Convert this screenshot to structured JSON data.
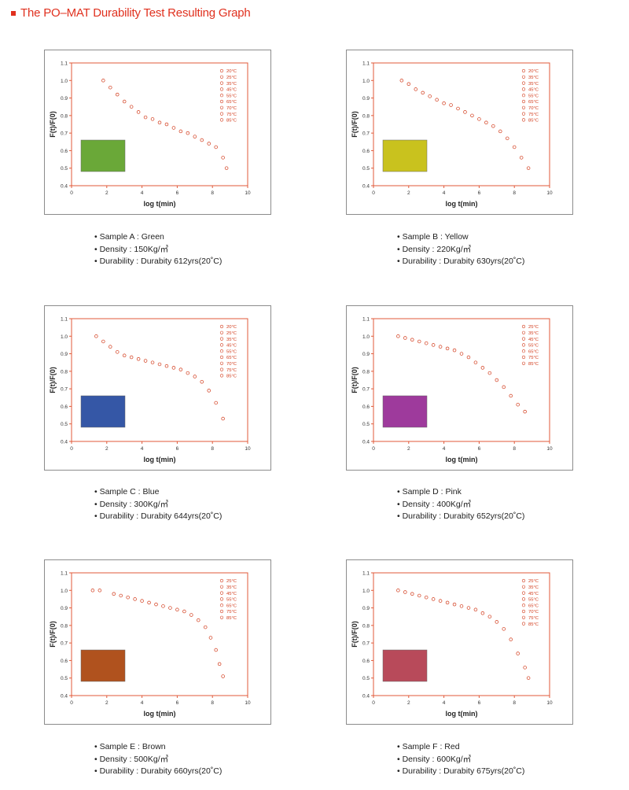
{
  "header": {
    "title": "The PO–MAT Durability Test Resulting Graph"
  },
  "colors": {
    "accent": "#e0301e",
    "marker": "#d23a1a",
    "axis": "#e05a3a",
    "tick_text": "#333333"
  },
  "chart_data": [
    {
      "type": "scatter",
      "sample_label": "Sample A : Green",
      "density_label": "Density : 150Kg/㎥",
      "durability_label": "Durability : Durabity 612yrs(20˚C)",
      "xlabel": "log t(min)",
      "ylabel": "F(t)/F(0)",
      "xlim": [
        0,
        10
      ],
      "ylim": [
        0.4,
        1.1
      ],
      "x_ticks": [
        "0",
        "2",
        "4",
        "6",
        "8",
        "10"
      ],
      "y_ticks": [
        "0.4",
        "0.5",
        "0.6",
        "0.7",
        "0.8",
        "0.9",
        "1.0",
        "1.1"
      ],
      "legend": [
        "20°C",
        "25°C",
        "35°C",
        "45°C",
        "55°C",
        "65°C",
        "70°C",
        "75°C",
        "85°C"
      ],
      "swatch_color": "#6aa838",
      "x": [
        1.8,
        2.2,
        2.6,
        3.0,
        3.4,
        3.8,
        4.2,
        4.6,
        5.0,
        5.4,
        5.8,
        6.2,
        6.6,
        7.0,
        7.4,
        7.8,
        8.2,
        8.6,
        8.8
      ],
      "y": [
        1.0,
        0.96,
        0.92,
        0.88,
        0.85,
        0.82,
        0.79,
        0.78,
        0.76,
        0.75,
        0.73,
        0.71,
        0.7,
        0.68,
        0.66,
        0.64,
        0.62,
        0.56,
        0.5
      ]
    },
    {
      "type": "scatter",
      "sample_label": "Sample B : Yellow",
      "density_label": "Density : 220Kg/㎥",
      "durability_label": "Durability : Durabity 630yrs(20˚C)",
      "xlabel": "log t(min)",
      "ylabel": "F(t)/F(0)",
      "xlim": [
        0,
        10
      ],
      "ylim": [
        0.4,
        1.1
      ],
      "x_ticks": [
        "0",
        "2",
        "4",
        "6",
        "8",
        "10"
      ],
      "y_ticks": [
        "0.4",
        "0.5",
        "0.6",
        "0.7",
        "0.8",
        "0.9",
        "1.0",
        "1.1"
      ],
      "legend": [
        "20°C",
        "35°C",
        "35°C",
        "45°C",
        "55°C",
        "65°C",
        "70°C",
        "75°C",
        "85°C"
      ],
      "swatch_color": "#c9c21e",
      "x": [
        1.6,
        2.0,
        2.4,
        2.8,
        3.2,
        3.6,
        4.0,
        4.4,
        4.8,
        5.2,
        5.6,
        6.0,
        6.4,
        6.8,
        7.2,
        7.6,
        8.0,
        8.4,
        8.8
      ],
      "y": [
        1.0,
        0.98,
        0.95,
        0.93,
        0.91,
        0.89,
        0.87,
        0.86,
        0.84,
        0.82,
        0.8,
        0.78,
        0.76,
        0.74,
        0.71,
        0.67,
        0.62,
        0.56,
        0.5
      ]
    },
    {
      "type": "scatter",
      "sample_label": "Sample C : Blue",
      "density_label": "Density : 300Kg/㎥",
      "durability_label": "Durability : Durabity 644yrs(20˚C)",
      "xlabel": "log t(min)",
      "ylabel": "F(t)/F(0)",
      "xlim": [
        0,
        10
      ],
      "ylim": [
        0.4,
        1.1
      ],
      "x_ticks": [
        "0",
        "2",
        "4",
        "6",
        "8",
        "10"
      ],
      "y_ticks": [
        "0.4",
        "0.5",
        "0.6",
        "0.7",
        "0.8",
        "0.9",
        "1.0",
        "1.1"
      ],
      "legend": [
        "20°C",
        "25°C",
        "35°C",
        "45°C",
        "55°C",
        "65°C",
        "70°C",
        "75°C",
        "85°C"
      ],
      "swatch_color": "#3557a6",
      "x": [
        1.4,
        1.8,
        2.2,
        2.6,
        3.0,
        3.4,
        3.8,
        4.2,
        4.6,
        5.0,
        5.4,
        5.8,
        6.2,
        6.6,
        7.0,
        7.4,
        7.8,
        8.2,
        8.6
      ],
      "y": [
        1.0,
        0.97,
        0.94,
        0.91,
        0.89,
        0.88,
        0.87,
        0.86,
        0.85,
        0.84,
        0.83,
        0.82,
        0.81,
        0.79,
        0.77,
        0.74,
        0.69,
        0.62,
        0.53
      ]
    },
    {
      "type": "scatter",
      "sample_label": "Sample D : Pink",
      "density_label": "Density : 400Kg/㎥",
      "durability_label": "Durability : Durabity 652yrs(20˚C)",
      "xlabel": "log t(min)",
      "ylabel": "F(t)/F(0)",
      "xlim": [
        0,
        10
      ],
      "ylim": [
        0.4,
        1.1
      ],
      "x_ticks": [
        "0",
        "2",
        "4",
        "6",
        "8",
        "10"
      ],
      "y_ticks": [
        "0.4",
        "0.5",
        "0.6",
        "0.7",
        "0.8",
        "0.9",
        "1.0",
        "1.1"
      ],
      "legend": [
        "25°C",
        "35°C",
        "45°C",
        "55°C",
        "65°C",
        "75°C",
        "85°C"
      ],
      "swatch_color": "#9e3a9c",
      "x": [
        1.4,
        1.8,
        2.2,
        2.6,
        3.0,
        3.4,
        3.8,
        4.2,
        4.6,
        5.0,
        5.4,
        5.8,
        6.2,
        6.6,
        7.0,
        7.4,
        7.8,
        8.2,
        8.6
      ],
      "y": [
        1.0,
        0.99,
        0.98,
        0.97,
        0.96,
        0.95,
        0.94,
        0.93,
        0.92,
        0.9,
        0.88,
        0.85,
        0.82,
        0.79,
        0.75,
        0.71,
        0.66,
        0.61,
        0.57
      ]
    },
    {
      "type": "scatter",
      "sample_label": "Sample E : Brown",
      "density_label": "Density : 500Kg/㎥",
      "durability_label": "Durability : Durabity 660yrs(20˚C)",
      "xlabel": "log t(min)",
      "ylabel": "F(t)/F(0)",
      "xlim": [
        0,
        10
      ],
      "ylim": [
        0.4,
        1.1
      ],
      "x_ticks": [
        "0",
        "2",
        "4",
        "6",
        "8",
        "10"
      ],
      "y_ticks": [
        "0.4",
        "0.5",
        "0.6",
        "0.7",
        "0.8",
        "0.9",
        "1.0",
        "1.1"
      ],
      "legend": [
        "25°C",
        "35°C",
        "45°C",
        "55°C",
        "65°C",
        "75°C",
        "85°C"
      ],
      "swatch_color": "#b0521e",
      "x": [
        1.2,
        1.6,
        2.4,
        2.8,
        3.2,
        3.6,
        4.0,
        4.4,
        4.8,
        5.2,
        5.6,
        6.0,
        6.4,
        6.8,
        7.2,
        7.6,
        7.9,
        8.2,
        8.4,
        8.6
      ],
      "y": [
        1.0,
        1.0,
        0.98,
        0.97,
        0.96,
        0.95,
        0.94,
        0.93,
        0.92,
        0.91,
        0.9,
        0.89,
        0.88,
        0.86,
        0.83,
        0.79,
        0.73,
        0.66,
        0.58,
        0.51
      ]
    },
    {
      "type": "scatter",
      "sample_label": "Sample F : Red",
      "density_label": "Density : 600Kg/㎥",
      "durability_label": "Durability : Durabity 675yrs(20˚C)",
      "xlabel": "log t(min)",
      "ylabel": "F(t)/F(0)",
      "xlim": [
        0,
        10
      ],
      "ylim": [
        0.4,
        1.1
      ],
      "x_ticks": [
        "0",
        "2",
        "4",
        "6",
        "8",
        "10"
      ],
      "y_ticks": [
        "0.4",
        "0.5",
        "0.6",
        "0.7",
        "0.8",
        "0.9",
        "1.0",
        "1.1"
      ],
      "legend": [
        "25°C",
        "35°C",
        "45°C",
        "55°C",
        "65°C",
        "70°C",
        "75°C",
        "85°C"
      ],
      "swatch_color": "#b84a5a",
      "x": [
        1.4,
        1.8,
        2.2,
        2.6,
        3.0,
        3.4,
        3.8,
        4.2,
        4.6,
        5.0,
        5.4,
        5.8,
        6.2,
        6.6,
        7.0,
        7.4,
        7.8,
        8.2,
        8.6,
        8.8
      ],
      "y": [
        1.0,
        0.99,
        0.98,
        0.97,
        0.96,
        0.95,
        0.94,
        0.93,
        0.92,
        0.91,
        0.9,
        0.89,
        0.87,
        0.85,
        0.82,
        0.78,
        0.72,
        0.64,
        0.56,
        0.5
      ]
    }
  ]
}
